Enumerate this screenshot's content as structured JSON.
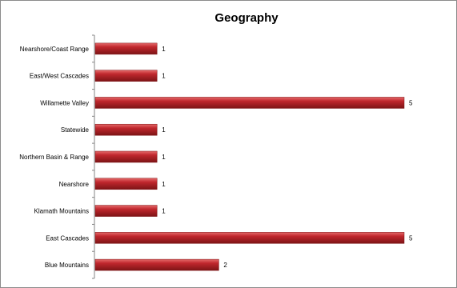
{
  "chart_data": {
    "type": "bar",
    "orientation": "horizontal",
    "title": "Geography",
    "xlabel": "",
    "ylabel": "",
    "categories": [
      "Nearshore/Coast Range",
      "East/West Cascades",
      "Willamette Valley",
      "Statewide",
      "Northern Basin & Range",
      "Nearshore",
      "Klamath Mountains",
      "East Cascades",
      "Blue Mountains"
    ],
    "values": [
      1,
      1,
      5,
      1,
      1,
      1,
      1,
      5,
      2
    ],
    "xlim": [
      0,
      5
    ],
    "grid": false,
    "legend": "none",
    "data_labels": true,
    "bar_color": "#c0272d",
    "bar_highlight": "#e56b6b",
    "bar_shadow": "#7d1416"
  }
}
